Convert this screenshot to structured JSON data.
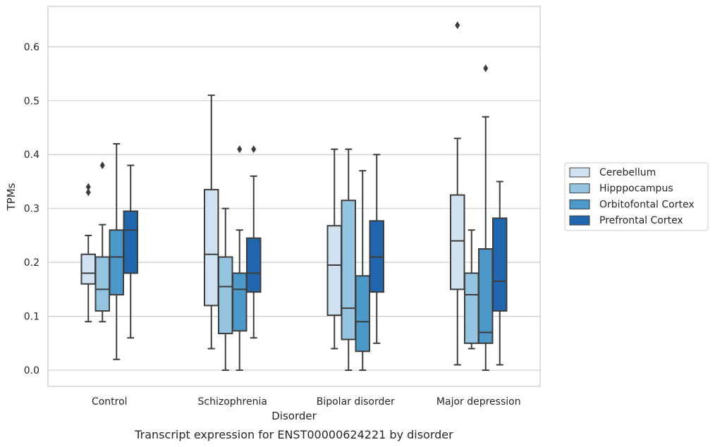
{
  "chart_data": {
    "type": "box",
    "xlabel": "Disorder",
    "ylabel": "TPMs",
    "caption": "Transcript expression for ENST00000624221 by disorder",
    "categories": [
      "Control",
      "Schizophrenia",
      "Bipolar disorder",
      "Major depression"
    ],
    "ylim": [
      -0.03,
      0.675
    ],
    "yticks": [
      "0.0",
      "0.1",
      "0.2",
      "0.3",
      "0.4",
      "0.5",
      "0.6"
    ],
    "grid": true,
    "legend_position": "right",
    "series": [
      {
        "name": "Cerebellum",
        "color": "#d0e1f2",
        "boxes": [
          {
            "whisker_low": 0.09,
            "q1": 0.16,
            "median": 0.18,
            "q3": 0.215,
            "whisker_high": 0.25,
            "outliers": [
              0.33,
              0.34
            ]
          },
          {
            "whisker_low": 0.04,
            "q1": 0.12,
            "median": 0.215,
            "q3": 0.335,
            "whisker_high": 0.51,
            "outliers": []
          },
          {
            "whisker_low": 0.04,
            "q1": 0.102,
            "median": 0.195,
            "q3": 0.268,
            "whisker_high": 0.41,
            "outliers": []
          },
          {
            "whisker_low": 0.01,
            "q1": 0.15,
            "median": 0.24,
            "q3": 0.325,
            "whisker_high": 0.43,
            "outliers": [
              0.64
            ]
          }
        ]
      },
      {
        "name": "Hipppocampus",
        "color": "#94c4df",
        "boxes": [
          {
            "whisker_low": 0.09,
            "q1": 0.11,
            "median": 0.15,
            "q3": 0.21,
            "whisker_high": 0.27,
            "outliers": [
              0.38
            ]
          },
          {
            "whisker_low": 0.0,
            "q1": 0.068,
            "median": 0.155,
            "q3": 0.21,
            "whisker_high": 0.3,
            "outliers": []
          },
          {
            "whisker_low": 0.0,
            "q1": 0.057,
            "median": 0.115,
            "q3": 0.315,
            "whisker_high": 0.41,
            "outliers": []
          },
          {
            "whisker_low": 0.04,
            "q1": 0.05,
            "median": 0.14,
            "q3": 0.18,
            "whisker_high": 0.26,
            "outliers": []
          }
        ]
      },
      {
        "name": "Orbitofontal Cortex",
        "color": "#4b98c9",
        "boxes": [
          {
            "whisker_low": 0.02,
            "q1": 0.14,
            "median": 0.21,
            "q3": 0.26,
            "whisker_high": 0.42,
            "outliers": []
          },
          {
            "whisker_low": 0.0,
            "q1": 0.073,
            "median": 0.15,
            "q3": 0.18,
            "whisker_high": 0.26,
            "outliers": [
              0.41
            ]
          },
          {
            "whisker_low": 0.0,
            "q1": 0.035,
            "median": 0.09,
            "q3": 0.175,
            "whisker_high": 0.37,
            "outliers": []
          },
          {
            "whisker_low": 0.0,
            "q1": 0.05,
            "median": 0.07,
            "q3": 0.225,
            "whisker_high": 0.47,
            "outliers": [
              0.56
            ]
          }
        ]
      },
      {
        "name": "Prefrontal Cortex",
        "color": "#2166ac",
        "boxes": [
          {
            "whisker_low": 0.06,
            "q1": 0.18,
            "median": 0.26,
            "q3": 0.295,
            "whisker_high": 0.38,
            "outliers": []
          },
          {
            "whisker_low": 0.06,
            "q1": 0.145,
            "median": 0.18,
            "q3": 0.245,
            "whisker_high": 0.36,
            "outliers": [
              0.41
            ]
          },
          {
            "whisker_low": 0.05,
            "q1": 0.145,
            "median": 0.21,
            "q3": 0.277,
            "whisker_high": 0.4,
            "outliers": []
          },
          {
            "whisker_low": 0.01,
            "q1": 0.11,
            "median": 0.165,
            "q3": 0.282,
            "whisker_high": 0.35,
            "outliers": []
          }
        ]
      }
    ]
  }
}
